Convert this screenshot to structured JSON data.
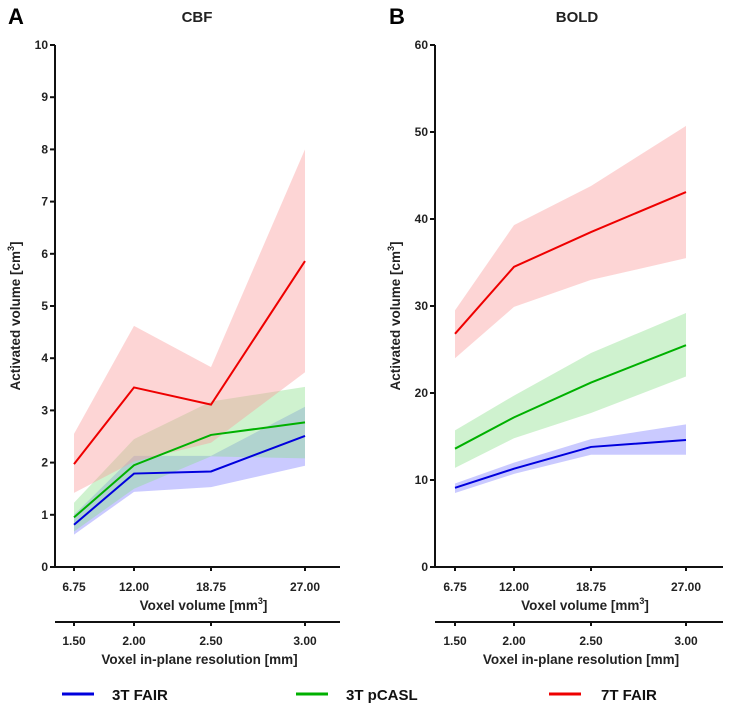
{
  "chart_data": [
    {
      "type": "line",
      "panel_letter": "A",
      "title": "CBF",
      "ylabel": "Activated volume [cm",
      "ylabel_sup": "3",
      "ylabel_end": "]",
      "ylim": [
        0,
        10
      ],
      "yticks": [
        0,
        1,
        2,
        3,
        4,
        5,
        6,
        7,
        8,
        9,
        10
      ],
      "x": [
        6.75,
        12.0,
        18.75,
        27.0
      ],
      "xtick_labels": [
        "6.75",
        "12.00",
        "18.75",
        "27.00"
      ],
      "xlabel": "Voxel volume [mm",
      "xlabel_sup": "3",
      "xlabel_end": "]",
      "x2tick_labels": [
        "1.50",
        "2.00",
        "2.50",
        "3.00"
      ],
      "x2label": "Voxel in-plane resolution [mm]",
      "xlim": [
        5.5,
        31.0
      ],
      "series": [
        {
          "name": "3T FAIR",
          "color": "#0000dd",
          "band_color": "#8080ff",
          "values": [
            0.81,
            1.79,
            1.83,
            2.51
          ],
          "upper": [
            1.0,
            2.13,
            2.13,
            3.07
          ],
          "lower": [
            0.62,
            1.44,
            1.53,
            1.94
          ]
        },
        {
          "name": "3T pCASL",
          "color": "#00b000",
          "band_color": "#8ddf8d",
          "values": [
            0.95,
            1.95,
            2.53,
            2.77
          ],
          "upper": [
            1.23,
            2.45,
            3.17,
            3.45
          ],
          "lower": [
            0.68,
            1.5,
            2.12,
            2.08
          ]
        },
        {
          "name": "7T FAIR",
          "color": "#ee0000",
          "band_color": "#fb9a9a",
          "values": [
            1.97,
            3.44,
            3.11,
            5.86
          ],
          "upper": [
            2.55,
            4.62,
            3.83,
            8.0
          ],
          "lower": [
            1.42,
            2.02,
            2.38,
            3.73
          ]
        }
      ]
    },
    {
      "type": "line",
      "panel_letter": "B",
      "title": "BOLD",
      "ylabel": "Activated volume [cm",
      "ylabel_sup": "3",
      "ylabel_end": "]",
      "ylim": [
        0,
        60
      ],
      "yticks": [
        0,
        10,
        20,
        30,
        40,
        50,
        60
      ],
      "x": [
        6.75,
        12.0,
        18.75,
        27.0
      ],
      "xtick_labels": [
        "6.75",
        "12.00",
        "18.75",
        "27.00"
      ],
      "xlabel": "Voxel volume [mm",
      "xlabel_sup": "3",
      "xlabel_end": "]",
      "x2tick_labels": [
        "1.50",
        "2.00",
        "2.50",
        "3.00"
      ],
      "x2label": "Voxel in-plane resolution [mm]",
      "xlim": [
        5.5,
        31.0
      ],
      "series": [
        {
          "name": "3T FAIR",
          "color": "#0000dd",
          "band_color": "#8080ff",
          "values": [
            9.1,
            11.3,
            13.8,
            14.6
          ],
          "upper": [
            9.6,
            12.0,
            14.7,
            16.4
          ],
          "lower": [
            8.5,
            10.7,
            12.9,
            12.9
          ]
        },
        {
          "name": "3T pCASL",
          "color": "#00b000",
          "band_color": "#8ddf8d",
          "values": [
            13.6,
            17.2,
            21.2,
            25.5
          ],
          "upper": [
            15.7,
            19.7,
            24.6,
            29.2
          ],
          "lower": [
            11.4,
            14.8,
            17.7,
            21.9
          ]
        },
        {
          "name": "7T FAIR",
          "color": "#ee0000",
          "band_color": "#fb9a9a",
          "values": [
            26.8,
            34.5,
            38.5,
            43.1
          ],
          "upper": [
            29.5,
            39.3,
            43.8,
            50.7
          ],
          "lower": [
            24.0,
            29.9,
            33.0,
            35.5
          ]
        }
      ]
    }
  ],
  "legend": [
    {
      "name": "3T FAIR",
      "color": "#0000dd"
    },
    {
      "name": "3T pCASL",
      "color": "#00b000"
    },
    {
      "name": "7T FAIR",
      "color": "#ee0000"
    }
  ]
}
